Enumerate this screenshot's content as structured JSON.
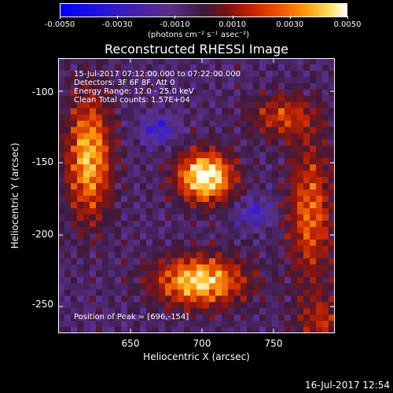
{
  "colorbar": {
    "tick_labels": [
      "-0.0050",
      "-0.0030",
      "-0.0010",
      "0.0010",
      "0.0030",
      "0.0050"
    ],
    "units": "(photons cm⁻² s⁻¹ asec⁻²)"
  },
  "plot": {
    "title": "Reconstructed RHESSI Image",
    "xlabel": "Heliocentric X (arcsec)",
    "ylabel": "Heliocentric Y (arcsec)",
    "x_ticks": [
      "650",
      "700",
      "750"
    ],
    "y_ticks": [
      "-100",
      "-150",
      "-200",
      "-250"
    ]
  },
  "info": {
    "line1": "15-Jul-2017 07:12:00.000 to 07:22:00.000",
    "line2": "Detectors: 3F 6F 8F, Att 0",
    "line3": "Energy Range: 12.0 - 25.0 keV",
    "line4": "Clean     Total counts: 1.57E+04",
    "peak": "Position of Peak = [696,-154]"
  },
  "footer": {
    "timestamp": "16-Jul-2017 12:54"
  }
}
